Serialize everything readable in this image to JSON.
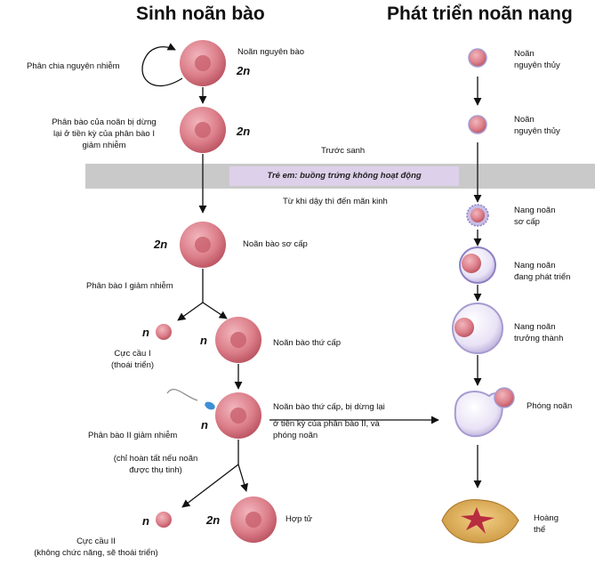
{
  "titles": {
    "left": "Sinh noãn bào",
    "right": "Phát triển noãn nang"
  },
  "band_text": "Trẻ em: buồng trứng không hoạt động",
  "left": {
    "mitosis": "Phân chia nguyên  nhiễm",
    "oogonium": "Noãn nguyên bào",
    "arrest_line1": "Phân bào của noãn bị dừng",
    "arrest_line2": "lại ở tiền kỳ của phân bào I",
    "arrest_line3": "giảm nhiễm",
    "primary": "Noãn bào sơ cấp",
    "meiosis1": "Phân bào I giảm nhiễm",
    "polar1_line1": "Cực cầu I",
    "polar1_line2": "(thoái triển)",
    "secondary": "Noãn bào thứ cấp",
    "arrest2_line1": "Noãn bào thứ cấp, bị dừng lại",
    "arrest2_line2": "ở tiền kỳ của phân bào II, và",
    "arrest2_line3": "phóng noãn",
    "meiosis2": "Phân bào II giảm nhiễm",
    "complete_line1": "(chỉ hoàn tất nếu noãn",
    "complete_line2": "được thụ tinh)",
    "zygote": "Hợp tử",
    "polar2_line1": "Cực cầu  II",
    "polar2_line2": "(không chức năng, sẽ thoái triển)"
  },
  "ploidy": {
    "p1": "2n",
    "p2": "2n",
    "p3": "2n",
    "p4": "n",
    "p5": "n",
    "p6": "n",
    "p7": "n",
    "p8": "2n",
    "p9": "n"
  },
  "middle": {
    "before_birth": "Trước sanh",
    "puberty": "Từ khi dậy thì đến mãn kinh"
  },
  "right": {
    "f1_line1": "Noãn",
    "f1_line2": "nguyên thủy",
    "f2_line1": "Noãn",
    "f2_line2": "nguyên thủy",
    "f3_line1": "Nang noãn",
    "f3_line2": "sơ cấp",
    "f4_line1": "Nang noãn",
    "f4_line2": "đang phát triển",
    "f5_line1": "Nang noãn",
    "f5_line2": "trưởng thành",
    "ovulation": "Phóng noãn",
    "cl_line1": "Hoàng",
    "cl_line2": "thể"
  },
  "colors": {
    "cell": "#d8737f",
    "cell_edge": "#b24d5c",
    "nucleus": "#c9606e",
    "band": "#c9c9c9",
    "band_box": "#ddd0ea",
    "follicle": "#e6e0f5",
    "follicle_edge": "#a79bd0",
    "corpus": "#e0b15a",
    "corpus_core": "#b82c3f"
  }
}
